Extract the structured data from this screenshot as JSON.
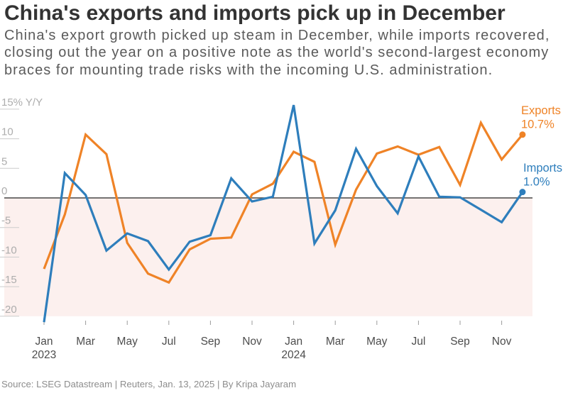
{
  "title": "China's exports and imports pick up in December",
  "subtitle_lines": [
    "China's export growth picked up steam in December, while imports recovered,",
    "closing out the year on a positive note as the world's second-largest economy",
    "braces for mounting trade risks with the incoming U.S. administration."
  ],
  "footer": "Source: LSEG Datastream | Reuters, Jan. 13, 2025 | By Kripa Jayaram",
  "chart_data": {
    "type": "line",
    "unit": "% Y/Y",
    "months": [
      "Jan 2023",
      "Feb 2023",
      "Mar 2023",
      "Apr 2023",
      "May 2023",
      "Jun 2023",
      "Jul 2023",
      "Aug 2023",
      "Sep 2023",
      "Oct 2023",
      "Nov 2023",
      "Dec 2023",
      "Jan 2024",
      "Feb 2024",
      "Mar 2024",
      "Apr 2024",
      "May 2024",
      "Jun 2024",
      "Jul 2024",
      "Aug 2024",
      "Sep 2024",
      "Oct 2024",
      "Nov 2024",
      "Dec 2024"
    ],
    "series": [
      {
        "name": "Exports",
        "color": "#EF8327",
        "end_value_label": "10.7%",
        "values": [
          -12.0,
          -2.8,
          10.7,
          7.4,
          -7.6,
          -12.8,
          -14.3,
          -8.7,
          -6.9,
          -6.7,
          0.6,
          2.4,
          7.8,
          6.1,
          -7.9,
          1.4,
          7.5,
          8.7,
          7.3,
          8.6,
          2.2,
          12.7,
          6.5,
          10.7
        ]
      },
      {
        "name": "Imports",
        "color": "#2E7EBC",
        "end_value_label": "1.0%",
        "values": [
          -21.0,
          4.2,
          0.5,
          -8.9,
          -6.0,
          -7.3,
          -12.1,
          -7.4,
          -6.3,
          3.3,
          -0.6,
          0.2,
          15.7,
          -7.7,
          -2.1,
          8.3,
          2.0,
          -2.6,
          7.0,
          0.2,
          0.1,
          -2.0,
          -4.1,
          1.0
        ]
      }
    ],
    "y_axis": {
      "ticks": [
        {
          "value": 15,
          "label": "15% Y/Y"
        },
        {
          "value": 10,
          "label": "10"
        },
        {
          "value": 5,
          "label": "5"
        },
        {
          "value": 0,
          "label": "0"
        },
        {
          "value": -5,
          "label": "-5"
        },
        {
          "value": -10,
          "label": "-10"
        },
        {
          "value": -15,
          "label": "-15"
        },
        {
          "value": -20,
          "label": "-20"
        }
      ],
      "range": [
        -22.5,
        16.5
      ]
    },
    "x_axis": {
      "ticks": [
        {
          "month_index": 0,
          "label": "Jan",
          "year": "2023"
        },
        {
          "month_index": 2,
          "label": "Mar"
        },
        {
          "month_index": 4,
          "label": "May"
        },
        {
          "month_index": 6,
          "label": "Jul"
        },
        {
          "month_index": 8,
          "label": "Sep"
        },
        {
          "month_index": 10,
          "label": "Nov"
        },
        {
          "month_index": 12,
          "label": "Jan",
          "year": "2024"
        },
        {
          "month_index": 14,
          "label": "Mar"
        },
        {
          "month_index": 16,
          "label": "May"
        },
        {
          "month_index": 18,
          "label": "Jul"
        },
        {
          "month_index": 20,
          "label": "Sep"
        },
        {
          "month_index": 22,
          "label": "Nov"
        }
      ]
    },
    "negative_region": {
      "from": 0,
      "to": -20,
      "color": "#FCF0EE"
    },
    "zero_line_color": "#474747",
    "grid": false,
    "legend_position": "end-of-line-labels"
  }
}
